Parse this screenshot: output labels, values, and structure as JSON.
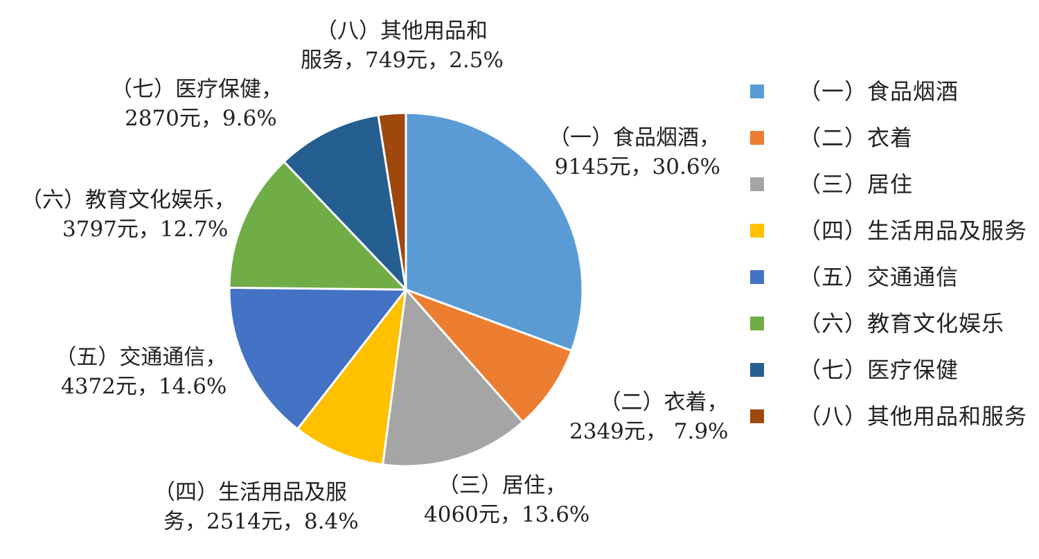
{
  "chart_data": {
    "type": "pie",
    "title": "",
    "start_angle_deg": 0,
    "direction": "clockwise",
    "legend_position": "right",
    "slices": [
      {
        "category": "（一）食品烟酒",
        "label_line1": "（一）食品烟酒，",
        "label_line2": "9145元，30.6%",
        "value": 9145,
        "percent": 30.6,
        "color": "#5B9BD5"
      },
      {
        "category": "（二）衣着",
        "label_line1": "（二）衣着，",
        "label_line2": "2349元， 7.9%",
        "value": 2349,
        "percent": 7.9,
        "color": "#ED7D31"
      },
      {
        "category": "（三）居住",
        "label_line1": "（三）居住，",
        "label_line2": "4060元，13.6%",
        "value": 4060,
        "percent": 13.6,
        "color": "#A5A5A5"
      },
      {
        "category": "（四）生活用品及服务",
        "label_line1": "（四）生活用品及服",
        "label_line2": "务，2514元，8.4%",
        "value": 2514,
        "percent": 8.4,
        "color": "#FFC000"
      },
      {
        "category": "（五）交通通信",
        "label_line1": "（五）交通通信，",
        "label_line2": "4372元，14.6%",
        "value": 4372,
        "percent": 14.6,
        "color": "#4472C4"
      },
      {
        "category": "（六）教育文化娱乐",
        "label_line1": "（六）教育文化娱乐，",
        "label_line2": "3797元，12.7%",
        "value": 3797,
        "percent": 12.7,
        "color": "#70AD47"
      },
      {
        "category": "（七）医疗保健",
        "label_line1": "（七）医疗保健，",
        "label_line2": "2870元，9.6%",
        "value": 2870,
        "percent": 9.6,
        "color": "#255E91"
      },
      {
        "category": "（八）其他用品和服务",
        "label_line1": "（八）其他用品和",
        "label_line2": "服务，749元，2.5%",
        "value": 749,
        "percent": 2.5,
        "color": "#9E480E"
      }
    ]
  }
}
